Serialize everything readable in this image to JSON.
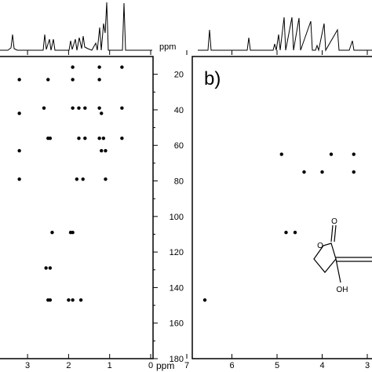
{
  "figure": {
    "axis_unit": "ppm",
    "left_panel": {
      "f2_ticks": [
        "3",
        "2",
        "1",
        "0"
      ],
      "f1_ticks": [
        "20",
        "40",
        "60",
        "80",
        "100",
        "120",
        "140",
        "160",
        "180"
      ]
    },
    "right_panel": {
      "label": "b)",
      "f2_ticks": [
        "7",
        "6",
        "5",
        "4",
        "3"
      ],
      "structure_labels": [
        "O",
        "O",
        "OH"
      ]
    }
  },
  "chart_data": [
    {
      "type": "scatter",
      "panel": "left (partial)",
      "xlabel": "ppm",
      "ylabel": "ppm",
      "x_reversed": true,
      "xlim": [
        3.3,
        0
      ],
      "ylim": [
        10,
        180
      ],
      "series": [
        {
          "points": [
            [
              3.2,
              23
            ],
            [
              2.5,
              23
            ],
            [
              1.9,
              16
            ],
            [
              1.9,
              23
            ],
            [
              1.25,
              16
            ],
            [
              1.25,
              23
            ],
            [
              0.7,
              16
            ],
            [
              3.2,
              42
            ],
            [
              2.6,
              39
            ],
            [
              1.9,
              39
            ],
            [
              1.75,
              39
            ],
            [
              1.6,
              39
            ],
            [
              1.25,
              39
            ],
            [
              1.2,
              42
            ],
            [
              0.7,
              39
            ],
            [
              2.5,
              56
            ],
            [
              2.45,
              56
            ],
            [
              1.75,
              56
            ],
            [
              1.6,
              56
            ],
            [
              1.25,
              56
            ],
            [
              1.15,
              56
            ],
            [
              0.7,
              56
            ],
            [
              3.2,
              63
            ],
            [
              1.2,
              63
            ],
            [
              1.1,
              63
            ],
            [
              3.2,
              79
            ],
            [
              1.8,
              79
            ],
            [
              1.65,
              79
            ],
            [
              1.1,
              79
            ],
            [
              2.4,
              109
            ],
            [
              1.95,
              109
            ],
            [
              1.9,
              109
            ],
            [
              2.55,
              129
            ],
            [
              2.45,
              129
            ],
            [
              2.5,
              147
            ],
            [
              2.45,
              147
            ],
            [
              2.0,
              147
            ],
            [
              1.9,
              147
            ],
            [
              1.7,
              147
            ]
          ]
        }
      ]
    },
    {
      "type": "scatter",
      "panel": "b",
      "xlabel": "ppm",
      "x_reversed": true,
      "xlim": [
        7,
        3
      ],
      "ylim": [
        10,
        180
      ],
      "series": [
        {
          "points": [
            [
              6.6,
              147
            ],
            [
              4.9,
              65
            ],
            [
              4.8,
              109
            ],
            [
              4.6,
              109
            ],
            [
              4.4,
              75
            ],
            [
              4.0,
              75
            ],
            [
              3.8,
              65
            ],
            [
              3.3,
              65
            ],
            [
              3.3,
              75
            ]
          ]
        }
      ]
    }
  ]
}
